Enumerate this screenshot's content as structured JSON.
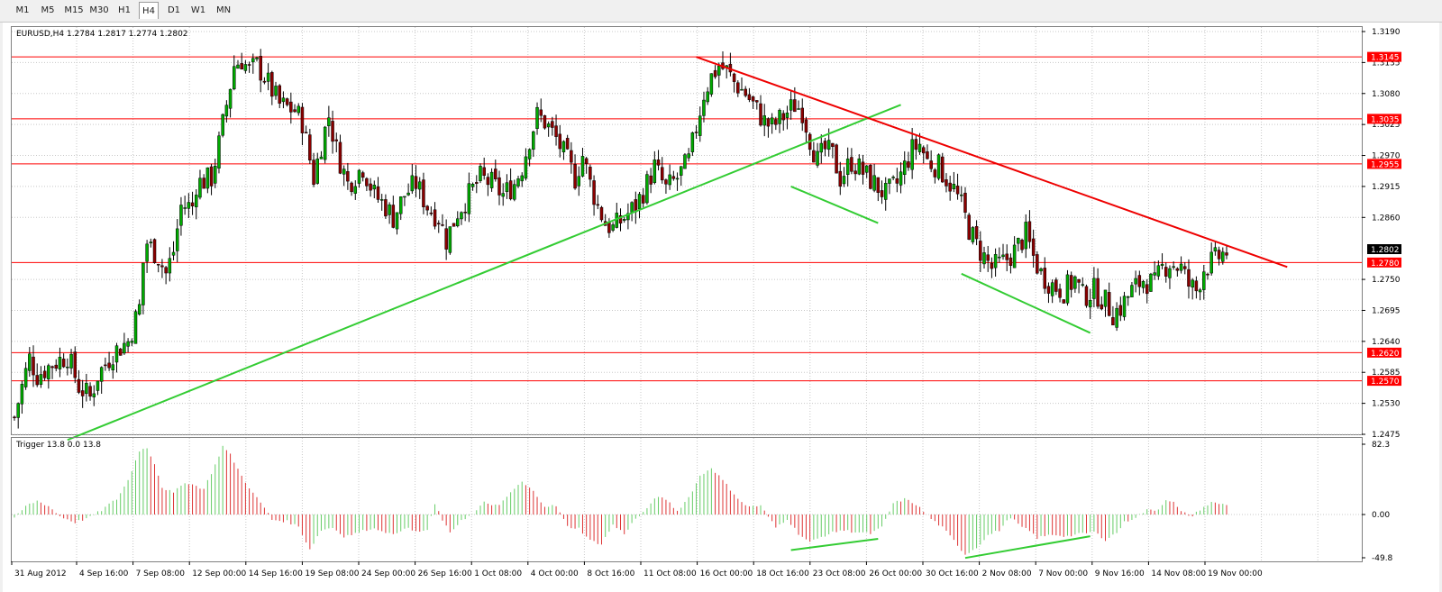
{
  "toolbar": {
    "timeframes": [
      {
        "label": "M1",
        "active": false
      },
      {
        "label": "M5",
        "active": false
      },
      {
        "label": "M15",
        "active": false
      },
      {
        "label": "M30",
        "active": false
      },
      {
        "label": "H1",
        "active": false
      },
      {
        "label": "H4",
        "active": true
      },
      {
        "label": "D1",
        "active": false
      },
      {
        "label": "W1",
        "active": false
      },
      {
        "label": "MN",
        "active": false
      }
    ]
  },
  "main_chart": {
    "header": "EURUSD,H4  1.2784 1.2817 1.2774 1.2802",
    "y_ticks": [
      "1.3190",
      "1.3135",
      "1.3080",
      "1.3025",
      "1.2970",
      "1.2915",
      "1.2860",
      "1.2750",
      "1.2695",
      "1.2640",
      "1.2585",
      "1.2530",
      "1.2475"
    ],
    "current_price": "1.2802",
    "levels": [
      "1.3145",
      "1.3035",
      "1.2955",
      "1.2780",
      "1.2620",
      "1.2570"
    ],
    "colors": {
      "up_candle": "#00aa00",
      "down_candle": "#8b0000",
      "level": "#ff0000",
      "support_trend": "#33cc33",
      "resistance_trend": "#ee0000"
    }
  },
  "indicator": {
    "header": "Trigger 13.8 0.0 13.8",
    "y_ticks": [
      "82.3",
      "0.00",
      "-49.8"
    ],
    "colors": {
      "rising": "#66cc66",
      "falling": "#dd3333"
    }
  },
  "x_labels": [
    "31 Aug 2012",
    "4 Sep 16:00",
    "7 Sep 08:00",
    "12 Sep 00:00",
    "14 Sep 16:00",
    "19 Sep 08:00",
    "24 Sep 00:00",
    "26 Sep 16:00",
    "1 Oct 08:00",
    "4 Oct 00:00",
    "8 Oct 16:00",
    "11 Oct 08:00",
    "16 Oct 00:00",
    "18 Oct 16:00",
    "23 Oct 08:00",
    "26 Oct 00:00",
    "30 Oct 16:00",
    "2 Nov 08:00",
    "7 Nov 00:00",
    "9 Nov 16:00",
    "14 Nov 08:00",
    "19 Nov 00:00"
  ],
  "chart_data": {
    "type": "candlestick",
    "symbol": "EURUSD",
    "timeframe": "H4",
    "last_bar": {
      "open": 1.2784,
      "high": 1.2817,
      "low": 1.2774,
      "close": 1.2802
    },
    "ylim": [
      1.247,
      1.3205
    ],
    "price_path": [
      [
        0,
        1.2505
      ],
      [
        2,
        1.256
      ],
      [
        4,
        1.261
      ],
      [
        6,
        1.258
      ],
      [
        10,
        1.26
      ],
      [
        14,
        1.2615
      ],
      [
        17,
        1.256
      ],
      [
        20,
        1.254
      ],
      [
        22,
        1.258
      ],
      [
        26,
        1.262
      ],
      [
        30,
        1.264
      ],
      [
        33,
        1.27
      ],
      [
        34,
        1.278
      ],
      [
        35,
        1.2815
      ],
      [
        38,
        1.279
      ],
      [
        40,
        1.276
      ],
      [
        42,
        1.28
      ],
      [
        44,
        1.288
      ],
      [
        47,
        1.288
      ],
      [
        48,
        1.292
      ],
      [
        52,
        1.293
      ],
      [
        54,
        1.299
      ],
      [
        56,
        1.306
      ],
      [
        58,
        1.313
      ],
      [
        60,
        1.314
      ],
      [
        62,
        1.312
      ],
      [
        64,
        1.313
      ],
      [
        66,
        1.311
      ],
      [
        70,
        1.306
      ],
      [
        74,
        1.305
      ],
      [
        76,
        1.303
      ],
      [
        79,
        1.293
      ],
      [
        81,
        1.299
      ],
      [
        83,
        1.304
      ],
      [
        85,
        1.298
      ],
      [
        88,
        1.292
      ],
      [
        92,
        1.295
      ],
      [
        95,
        1.29
      ],
      [
        98,
        1.288
      ],
      [
        100,
        1.286
      ],
      [
        103,
        1.29
      ],
      [
        106,
        1.292
      ],
      [
        109,
        1.288
      ],
      [
        112,
        1.286
      ],
      [
        114,
        1.282
      ],
      [
        117,
        1.287
      ],
      [
        120,
        1.29
      ],
      [
        123,
        1.293
      ],
      [
        126,
        1.292
      ],
      [
        129,
        1.29
      ],
      [
        132,
        1.292
      ],
      [
        134,
        1.295
      ],
      [
        136,
        1.3
      ],
      [
        138,
        1.304
      ],
      [
        140,
        1.303
      ],
      [
        143,
        1.3
      ],
      [
        146,
        1.296
      ],
      [
        148,
        1.293
      ],
      [
        150,
        1.297
      ],
      [
        152,
        1.292
      ],
      [
        154,
        1.288
      ],
      [
        156,
        1.285
      ],
      [
        158,
        1.284
      ],
      [
        161,
        1.286
      ],
      [
        164,
        1.288
      ],
      [
        167,
        1.292
      ],
      [
        169,
        1.295
      ],
      [
        172,
        1.291
      ],
      [
        175,
        1.293
      ],
      [
        178,
        1.296
      ],
      [
        180,
        1.302
      ],
      [
        182,
        1.308
      ],
      [
        184,
        1.311
      ],
      [
        186,
        1.313
      ],
      [
        188,
        1.312
      ],
      [
        190,
        1.31
      ],
      [
        193,
        1.308
      ],
      [
        196,
        1.305
      ],
      [
        198,
        1.303
      ],
      [
        200,
        1.302
      ],
      [
        203,
        1.304
      ],
      [
        206,
        1.306
      ],
      [
        208,
        1.305
      ],
      [
        210,
        1.3
      ],
      [
        212,
        1.296
      ],
      [
        214,
        1.298
      ],
      [
        216,
        1.297
      ],
      [
        218,
        1.293
      ],
      [
        221,
        1.296
      ],
      [
        224,
        1.294
      ],
      [
        227,
        1.292
      ],
      [
        230,
        1.29
      ],
      [
        233,
        1.292
      ],
      [
        235,
        1.295
      ],
      [
        237,
        1.298
      ],
      [
        239,
        1.299
      ],
      [
        241,
        1.296
      ],
      [
        244,
        1.295
      ],
      [
        246,
        1.293
      ],
      [
        248,
        1.291
      ],
      [
        250,
        1.288
      ],
      [
        252,
        1.284
      ],
      [
        254,
        1.281
      ],
      [
        256,
        1.279
      ],
      [
        258,
        1.277
      ],
      [
        261,
        1.278
      ],
      [
        264,
        1.28
      ],
      [
        267,
        1.283
      ],
      [
        269,
        1.279
      ],
      [
        271,
        1.276
      ],
      [
        274,
        1.274
      ],
      [
        277,
        1.273
      ],
      [
        280,
        1.275
      ],
      [
        282,
        1.272
      ],
      [
        285,
        1.273
      ],
      [
        288,
        1.271
      ],
      [
        290,
        1.269
      ],
      [
        292,
        1.27
      ],
      [
        295,
        1.273
      ],
      [
        298,
        1.275
      ],
      [
        301,
        1.274
      ],
      [
        303,
        1.277
      ],
      [
        305,
        1.278
      ],
      [
        308,
        1.277
      ],
      [
        310,
        1.274
      ],
      [
        312,
        1.273
      ],
      [
        314,
        1.277
      ],
      [
        316,
        1.278
      ],
      [
        318,
        1.279
      ],
      [
        320,
        1.28
      ]
    ],
    "horizontal_levels": [
      1.3145,
      1.3035,
      1.2955,
      1.278,
      1.262,
      1.257
    ],
    "trendlines": [
      {
        "type": "support",
        "from": [
          14,
          1.2465
        ],
        "to": [
          234,
          1.306
        ]
      },
      {
        "type": "resistance",
        "from": [
          180,
          1.3145
        ],
        "to": [
          336,
          1.2772
        ]
      },
      {
        "type": "support",
        "from": [
          205,
          1.2915
        ],
        "to": [
          228,
          1.285
        ]
      },
      {
        "type": "support",
        "from": [
          250,
          1.276
        ],
        "to": [
          284,
          1.2655
        ]
      }
    ],
    "indicator": {
      "name": "Trigger",
      "ylim": [
        -49.8,
        82.3
      ],
      "zero_line": 0.0,
      "path": [
        [
          0,
          -5
        ],
        [
          3,
          10
        ],
        [
          6,
          16
        ],
        [
          9,
          10
        ],
        [
          12,
          -2
        ],
        [
          16,
          -9
        ],
        [
          20,
          -3
        ],
        [
          23,
          5
        ],
        [
          25,
          12
        ],
        [
          27,
          18
        ],
        [
          30,
          40
        ],
        [
          33,
          75
        ],
        [
          35,
          78
        ],
        [
          37,
          60
        ],
        [
          39,
          32
        ],
        [
          42,
          25
        ],
        [
          45,
          38
        ],
        [
          47,
          35
        ],
        [
          50,
          30
        ],
        [
          53,
          58
        ],
        [
          55,
          80
        ],
        [
          57,
          70
        ],
        [
          60,
          45
        ],
        [
          63,
          25
        ],
        [
          66,
          8
        ],
        [
          68,
          -6
        ],
        [
          72,
          -8
        ],
        [
          75,
          -14
        ],
        [
          78,
          -40
        ],
        [
          81,
          -18
        ],
        [
          84,
          -15
        ],
        [
          87,
          -25
        ],
        [
          90,
          -22
        ],
        [
          94,
          -16
        ],
        [
          97,
          -18
        ],
        [
          100,
          -24
        ],
        [
          103,
          -15
        ],
        [
          106,
          -20
        ],
        [
          109,
          -18
        ],
        [
          111,
          12
        ],
        [
          113,
          -6
        ],
        [
          115,
          -22
        ],
        [
          118,
          -6
        ],
        [
          121,
          0
        ],
        [
          124,
          14
        ],
        [
          128,
          10
        ],
        [
          131,
          26
        ],
        [
          134,
          38
        ],
        [
          137,
          27
        ],
        [
          140,
          10
        ],
        [
          143,
          10
        ],
        [
          146,
          -14
        ],
        [
          149,
          -16
        ],
        [
          152,
          -30
        ],
        [
          155,
          -34
        ],
        [
          158,
          -12
        ],
        [
          161,
          -22
        ],
        [
          164,
          -5
        ],
        [
          167,
          6
        ],
        [
          169,
          20
        ],
        [
          172,
          18
        ],
        [
          175,
          4
        ],
        [
          178,
          20
        ],
        [
          181,
          45
        ],
        [
          184,
          55
        ],
        [
          187,
          40
        ],
        [
          190,
          24
        ],
        [
          193,
          10
        ],
        [
          197,
          10
        ],
        [
          201,
          -15
        ],
        [
          204,
          -5
        ],
        [
          207,
          -22
        ],
        [
          210,
          -32
        ],
        [
          214,
          -24
        ],
        [
          218,
          -18
        ],
        [
          222,
          -20
        ],
        [
          226,
          -22
        ],
        [
          229,
          -15
        ],
        [
          232,
          13
        ],
        [
          235,
          18
        ],
        [
          238,
          12
        ],
        [
          242,
          -5
        ],
        [
          245,
          -15
        ],
        [
          248,
          -30
        ],
        [
          251,
          -46
        ],
        [
          254,
          -38
        ],
        [
          257,
          -24
        ],
        [
          260,
          -18
        ],
        [
          263,
          -3
        ],
        [
          266,
          -15
        ],
        [
          268,
          -19
        ],
        [
          270,
          -27
        ],
        [
          274,
          -23
        ],
        [
          278,
          -25
        ],
        [
          282,
          -22
        ],
        [
          285,
          -20
        ],
        [
          288,
          -29
        ],
        [
          291,
          -21
        ],
        [
          293,
          -9
        ],
        [
          296,
          -3
        ],
        [
          299,
          5
        ],
        [
          302,
          6
        ],
        [
          304,
          18
        ],
        [
          306,
          14
        ],
        [
          308,
          3
        ],
        [
          311,
          -2
        ],
        [
          313,
          6
        ],
        [
          316,
          14
        ],
        [
          319,
          12
        ],
        [
          321,
          12
        ]
      ]
    }
  }
}
